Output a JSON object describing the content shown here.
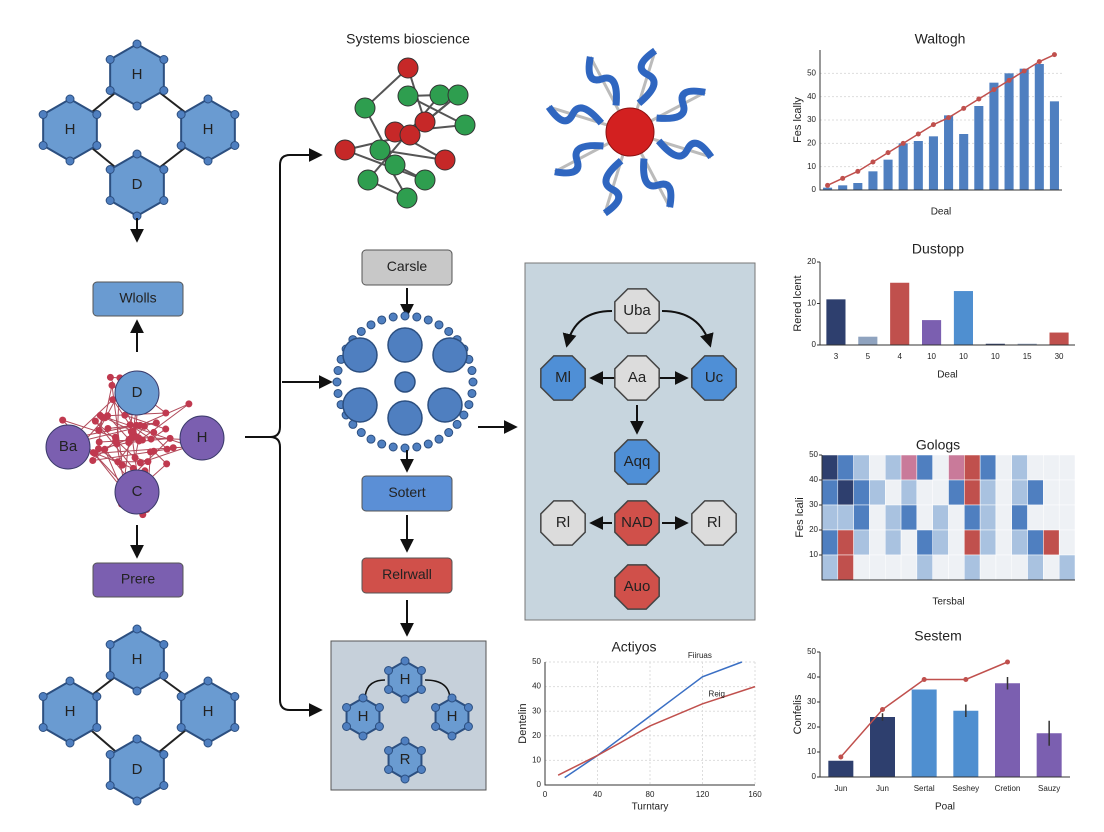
{
  "left": {
    "hex_top": [
      "H",
      "H",
      "H",
      "D"
    ],
    "box_top": "Wlolls",
    "cluster": [
      "D",
      "Ba",
      "H",
      "C"
    ],
    "box_bottom": "Prere",
    "hex_bottom": [
      "H",
      "H",
      "H",
      "D"
    ]
  },
  "center": {
    "title": "Systems bioscience",
    "box_1": "Carsle",
    "box_2": "Sotert",
    "box_3": "Relrwall",
    "panel_nodes": [
      "H",
      "H",
      "H",
      "R"
    ]
  },
  "flow": {
    "nodes": [
      "Uba",
      "Ml",
      "Aa",
      "Uc",
      "Aqq",
      "Rl",
      "NAD",
      "Rl",
      "Auo"
    ]
  },
  "charts": [
    {
      "type": "bar",
      "title": "Waltogh",
      "ylabel": "Fes lcally",
      "xlabel": "Deal",
      "color": "#4f7fc0",
      "values": [
        1,
        2,
        3,
        8,
        13,
        20,
        21,
        23,
        32,
        24,
        36,
        46,
        50,
        52,
        54,
        38
      ],
      "line": {
        "color": "#c0504d",
        "values": [
          2,
          5,
          8,
          12,
          16,
          20,
          24,
          28,
          31,
          35,
          39,
          43,
          47,
          51,
          55,
          58
        ]
      },
      "ylim": [
        0,
        60
      ],
      "yticks": [
        0,
        10,
        20,
        30,
        40,
        50
      ],
      "grid": true
    },
    {
      "type": "bar",
      "title": "Dustopp",
      "ylabel": "Rered lcent",
      "xlabel": "Deal",
      "categories": [
        "3",
        "5",
        "4",
        "10",
        "10",
        "10",
        "15",
        "30"
      ],
      "values": [
        11,
        2,
        15,
        6,
        13,
        0.3,
        0.3,
        3
      ],
      "colors": [
        "#2e3f6e",
        "#8fa3bf",
        "#c0504d",
        "#7b5fb0",
        "#4f8fd0",
        "#2e3f6e",
        "#8fa3bf",
        "#c0504d"
      ],
      "ylim": [
        0,
        20
      ],
      "yticks": [
        0,
        10,
        20
      ],
      "grid": false
    },
    {
      "type": "heatmap",
      "title": "Gologs",
      "ylabel": "Fes lcali",
      "xlabel": "Tersbal",
      "colors": [
        "#eef1f5",
        "#a9c2e0",
        "#4f7fc0",
        "#2e3f6e",
        "#c0504d",
        "#c97a9a"
      ],
      "values": [
        [
          3,
          2,
          1,
          0,
          1,
          5,
          2,
          0,
          5,
          4,
          2,
          0,
          1,
          0,
          0,
          0
        ],
        [
          2,
          3,
          2,
          1,
          0,
          1,
          0,
          0,
          2,
          4,
          1,
          0,
          1,
          2,
          0,
          0
        ],
        [
          1,
          1,
          2,
          0,
          1,
          2,
          0,
          1,
          0,
          2,
          1,
          0,
          2,
          0,
          0,
          0
        ],
        [
          2,
          4,
          1,
          0,
          1,
          0,
          2,
          1,
          0,
          4,
          1,
          0,
          1,
          2,
          4,
          0
        ],
        [
          1,
          4,
          0,
          0,
          0,
          0,
          1,
          0,
          0,
          1,
          0,
          0,
          0,
          1,
          0,
          1
        ]
      ],
      "ylim": [
        0,
        50
      ],
      "yticks": [
        10,
        20,
        30,
        40,
        50
      ]
    },
    {
      "type": "line",
      "title": "Actiyos",
      "ylabel": "Dentelin",
      "xlabel": "Turntary",
      "series": [
        {
          "name": "Fiiruas",
          "color": "#3a6fc4",
          "x": [
            15,
            40,
            60,
            80,
            100,
            120,
            150
          ],
          "values": [
            3,
            12,
            20,
            28,
            36,
            44,
            50
          ]
        },
        {
          "name": "Reig",
          "color": "#c0504d",
          "x": [
            10,
            40,
            80,
            120,
            160
          ],
          "values": [
            4,
            12,
            24,
            33,
            40
          ]
        }
      ],
      "xlim": [
        0,
        160
      ],
      "xticks": [
        0,
        40,
        80,
        120,
        160
      ],
      "ylim": [
        0,
        50
      ],
      "yticks": [
        0,
        10,
        20,
        30,
        40,
        50
      ],
      "grid": true
    },
    {
      "type": "bar",
      "title": "Sestem",
      "ylabel": "Confelis",
      "xlabel": "Poal",
      "categories": [
        "Jun",
        "Jun",
        "Sertal",
        "Seshey",
        "Cretion",
        "Sauzy"
      ],
      "values": [
        6.5,
        24,
        35,
        26.5,
        37.5,
        17.5
      ],
      "errors": [
        0,
        1.5,
        0,
        2.5,
        2.5,
        5
      ],
      "colors": [
        "#2e3f6e",
        "#2e3f6e",
        "#4f8fd0",
        "#4f8fd0",
        "#7b5fb0",
        "#7b5fb0"
      ],
      "line": {
        "color": "#c0504d",
        "values": [
          8,
          27,
          39,
          39,
          46,
          null
        ]
      },
      "ylim": [
        0,
        50
      ],
      "yticks": [
        0,
        10,
        20,
        30,
        40,
        50
      ],
      "grid": false
    }
  ]
}
